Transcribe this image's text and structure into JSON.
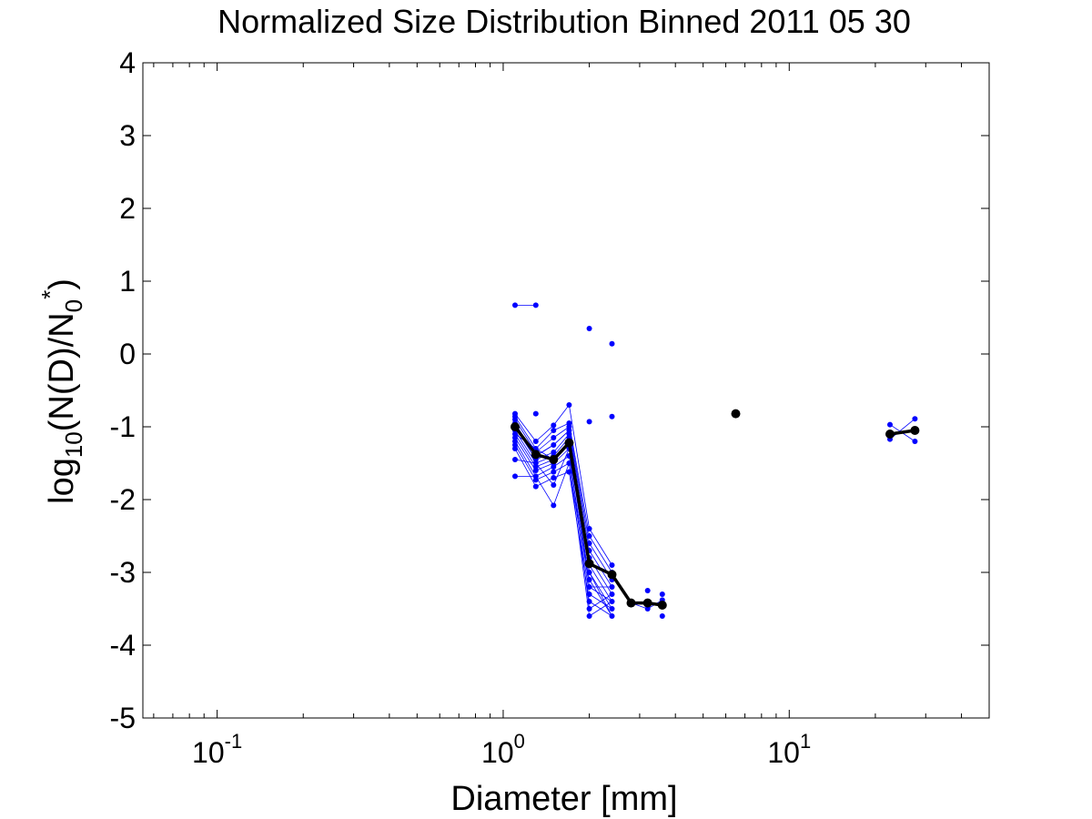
{
  "chart_data": {
    "type": "line",
    "title": "Normalized Size Distribution Binned 2011 05 30",
    "xlabel": "Diameter [mm]",
    "ylabel": {
      "base": "log",
      "base_sub": "10",
      "main": "(N(D)/N",
      "n_sub": "0",
      "sup": "*",
      "close": ")"
    },
    "x_scale": "log",
    "xlim": [
      0.055,
      50
    ],
    "ylim": [
      -5,
      4
    ],
    "x_ticks": [
      {
        "value": 0.1,
        "base": "10",
        "exp": "-1"
      },
      {
        "value": 1,
        "base": "10",
        "exp": "0"
      },
      {
        "value": 10,
        "base": "10",
        "exp": "1"
      }
    ],
    "y_ticks": [
      "4",
      "3",
      "2",
      "1",
      "0",
      "-1",
      "-2",
      "-3",
      "-4",
      "-5"
    ],
    "grid": false,
    "series": [
      {
        "role": "individual",
        "color": "#0000ff",
        "points": [
          [
            1.1,
            0.67
          ],
          [
            1.3,
            0.67
          ],
          [
            2.0,
            0.35
          ],
          [
            2.4,
            0.14
          ],
          [
            2.0,
            -0.93
          ],
          [
            2.4,
            -0.86
          ],
          [
            1.1,
            -0.82
          ],
          [
            1.1,
            -0.86
          ],
          [
            1.1,
            -0.9
          ],
          [
            1.1,
            -0.95
          ],
          [
            1.1,
            -1.0
          ],
          [
            1.1,
            -1.05
          ],
          [
            1.1,
            -1.1
          ],
          [
            1.1,
            -1.15
          ],
          [
            1.1,
            -1.2
          ],
          [
            1.1,
            -1.25
          ],
          [
            1.1,
            -1.3
          ],
          [
            1.1,
            -1.45
          ],
          [
            1.1,
            -1.68
          ],
          [
            1.3,
            -0.82
          ],
          [
            1.3,
            -1.2
          ],
          [
            1.3,
            -1.3
          ],
          [
            1.3,
            -1.35
          ],
          [
            1.3,
            -1.4
          ],
          [
            1.3,
            -1.45
          ],
          [
            1.3,
            -1.5
          ],
          [
            1.3,
            -1.55
          ],
          [
            1.3,
            -1.6
          ],
          [
            1.3,
            -1.68
          ],
          [
            1.3,
            -1.73
          ],
          [
            1.3,
            -1.82
          ],
          [
            1.5,
            -0.98
          ],
          [
            1.5,
            -1.05
          ],
          [
            1.5,
            -1.15
          ],
          [
            1.5,
            -1.25
          ],
          [
            1.5,
            -1.35
          ],
          [
            1.5,
            -1.4
          ],
          [
            1.5,
            -1.45
          ],
          [
            1.5,
            -1.5
          ],
          [
            1.5,
            -1.55
          ],
          [
            1.5,
            -1.62
          ],
          [
            1.5,
            -1.7
          ],
          [
            1.5,
            -1.8
          ],
          [
            1.5,
            -2.08
          ],
          [
            1.7,
            -0.7
          ],
          [
            1.7,
            -0.95
          ],
          [
            1.7,
            -1.0
          ],
          [
            1.7,
            -1.05
          ],
          [
            1.7,
            -1.1
          ],
          [
            1.7,
            -1.15
          ],
          [
            1.7,
            -1.2
          ],
          [
            1.7,
            -1.3
          ],
          [
            1.7,
            -1.4
          ],
          [
            1.7,
            -1.5
          ],
          [
            1.7,
            -1.62
          ],
          [
            2.0,
            -2.4
          ],
          [
            2.0,
            -2.5
          ],
          [
            2.0,
            -2.6
          ],
          [
            2.0,
            -2.7
          ],
          [
            2.0,
            -2.8
          ],
          [
            2.0,
            -2.9
          ],
          [
            2.0,
            -3.0
          ],
          [
            2.0,
            -3.1
          ],
          [
            2.0,
            -3.2
          ],
          [
            2.0,
            -3.3
          ],
          [
            2.0,
            -3.4
          ],
          [
            2.0,
            -3.5
          ],
          [
            2.0,
            -3.6
          ],
          [
            2.4,
            -2.9
          ],
          [
            2.4,
            -3.0
          ],
          [
            2.4,
            -3.1
          ],
          [
            2.4,
            -3.2
          ],
          [
            2.4,
            -3.3
          ],
          [
            2.4,
            -3.4
          ],
          [
            2.4,
            -3.5
          ],
          [
            2.4,
            -3.6
          ],
          [
            2.8,
            -3.42
          ],
          [
            3.2,
            -3.25
          ],
          [
            3.2,
            -3.5
          ],
          [
            3.6,
            -3.3
          ],
          [
            3.6,
            -3.38
          ],
          [
            3.6,
            -3.6
          ],
          [
            22.5,
            -0.97
          ],
          [
            22.5,
            -1.17
          ],
          [
            27.5,
            -0.89
          ],
          [
            27.5,
            -1.2
          ]
        ],
        "lines": [
          [
            [
              1.1,
              0.67
            ],
            [
              1.3,
              0.67
            ]
          ],
          [
            [
              1.1,
              -0.82
            ],
            [
              1.3,
              -1.2
            ],
            [
              1.5,
              -0.98
            ],
            [
              1.7,
              -0.7
            ],
            [
              2.0,
              -2.4
            ],
            [
              2.4,
              -2.9
            ]
          ],
          [
            [
              1.1,
              -0.86
            ],
            [
              1.3,
              -1.3
            ],
            [
              1.5,
              -1.05
            ],
            [
              1.7,
              -0.95
            ],
            [
              2.0,
              -2.5
            ],
            [
              2.4,
              -3.0
            ]
          ],
          [
            [
              1.1,
              -0.9
            ],
            [
              1.3,
              -1.35
            ],
            [
              1.5,
              -1.15
            ],
            [
              1.7,
              -1.0
            ],
            [
              2.0,
              -2.6
            ],
            [
              2.4,
              -3.1
            ]
          ],
          [
            [
              1.1,
              -0.95
            ],
            [
              1.3,
              -1.4
            ],
            [
              1.5,
              -1.25
            ],
            [
              1.7,
              -1.05
            ],
            [
              2.0,
              -2.7
            ],
            [
              2.4,
              -3.2
            ]
          ],
          [
            [
              1.1,
              -1.0
            ],
            [
              1.3,
              -1.45
            ],
            [
              1.5,
              -1.35
            ],
            [
              1.7,
              -1.1
            ],
            [
              2.0,
              -2.8
            ],
            [
              2.4,
              -3.3
            ]
          ],
          [
            [
              1.1,
              -1.05
            ],
            [
              1.3,
              -1.5
            ],
            [
              1.5,
              -1.4
            ],
            [
              1.7,
              -1.15
            ],
            [
              2.0,
              -2.9
            ],
            [
              2.4,
              -3.4
            ]
          ],
          [
            [
              1.1,
              -1.1
            ],
            [
              1.3,
              -1.55
            ],
            [
              1.5,
              -1.45
            ],
            [
              1.7,
              -1.2
            ],
            [
              2.0,
              -3.0
            ],
            [
              2.4,
              -3.5
            ]
          ],
          [
            [
              1.1,
              -1.15
            ],
            [
              1.3,
              -1.6
            ],
            [
              1.5,
              -1.5
            ],
            [
              1.7,
              -1.3
            ],
            [
              2.0,
              -3.1
            ],
            [
              2.4,
              -3.6
            ]
          ],
          [
            [
              1.1,
              -1.2
            ],
            [
              1.3,
              -1.68
            ],
            [
              1.5,
              -1.55
            ],
            [
              1.7,
              -1.4
            ],
            [
              2.0,
              -3.2
            ],
            [
              2.4,
              -3.4
            ]
          ],
          [
            [
              1.1,
              -1.25
            ],
            [
              1.3,
              -1.73
            ],
            [
              1.5,
              -1.62
            ],
            [
              1.7,
              -1.5
            ],
            [
              2.0,
              -3.3
            ],
            [
              2.4,
              -3.5
            ]
          ],
          [
            [
              1.1,
              -1.3
            ],
            [
              1.3,
              -1.82
            ],
            [
              1.5,
              -1.7
            ],
            [
              1.7,
              -1.62
            ],
            [
              2.0,
              -3.4
            ],
            [
              2.4,
              -3.6
            ]
          ],
          [
            [
              1.1,
              -1.45
            ],
            [
              1.3,
              -1.5
            ],
            [
              1.5,
              -1.8
            ],
            [
              1.7,
              -1.3
            ],
            [
              2.0,
              -3.5
            ],
            [
              2.4,
              -3.3
            ]
          ],
          [
            [
              1.1,
              -1.68
            ],
            [
              1.3,
              -1.68
            ],
            [
              1.5,
              -2.08
            ],
            [
              1.7,
              -1.5
            ],
            [
              2.0,
              -3.6
            ],
            [
              2.4,
              -3.4
            ]
          ],
          [
            [
              1.1,
              -1.1
            ],
            [
              1.3,
              -1.3
            ],
            [
              1.5,
              -1.45
            ],
            [
              1.7,
              -1.2
            ],
            [
              2.0,
              -3.2
            ],
            [
              2.4,
              -3.2
            ]
          ],
          [
            [
              1.1,
              -1.0
            ],
            [
              1.3,
              -1.4
            ],
            [
              1.5,
              -1.25
            ],
            [
              1.7,
              -1.05
            ],
            [
              2.0,
              -3.0
            ],
            [
              2.4,
              -3.6
            ]
          ],
          [
            [
              2.8,
              -3.42
            ],
            [
              3.2,
              -3.5
            ],
            [
              3.6,
              -3.38
            ]
          ],
          [
            [
              22.5,
              -0.97
            ],
            [
              27.5,
              -1.2
            ]
          ],
          [
            [
              22.5,
              -1.17
            ],
            [
              27.5,
              -0.89
            ]
          ]
        ]
      },
      {
        "role": "mean",
        "color": "#000000",
        "lines": [
          [
            [
              1.1,
              -1.0
            ],
            [
              1.3,
              -1.38
            ],
            [
              1.5,
              -1.45
            ],
            [
              1.7,
              -1.22
            ],
            [
              2.0,
              -2.88
            ],
            [
              2.4,
              -3.03
            ],
            [
              2.8,
              -3.42
            ],
            [
              3.2,
              -3.42
            ],
            [
              3.6,
              -3.45
            ]
          ],
          [
            [
              22.5,
              -1.1
            ],
            [
              27.5,
              -1.05
            ]
          ]
        ],
        "points": [
          [
            1.1,
            -1.0
          ],
          [
            1.3,
            -1.38
          ],
          [
            1.5,
            -1.45
          ],
          [
            1.7,
            -1.22
          ],
          [
            2.0,
            -2.88
          ],
          [
            2.4,
            -3.03
          ],
          [
            2.8,
            -3.42
          ],
          [
            3.2,
            -3.42
          ],
          [
            3.6,
            -3.45
          ],
          [
            6.5,
            -0.82
          ],
          [
            22.5,
            -1.1
          ],
          [
            27.5,
            -1.05
          ]
        ]
      }
    ]
  }
}
